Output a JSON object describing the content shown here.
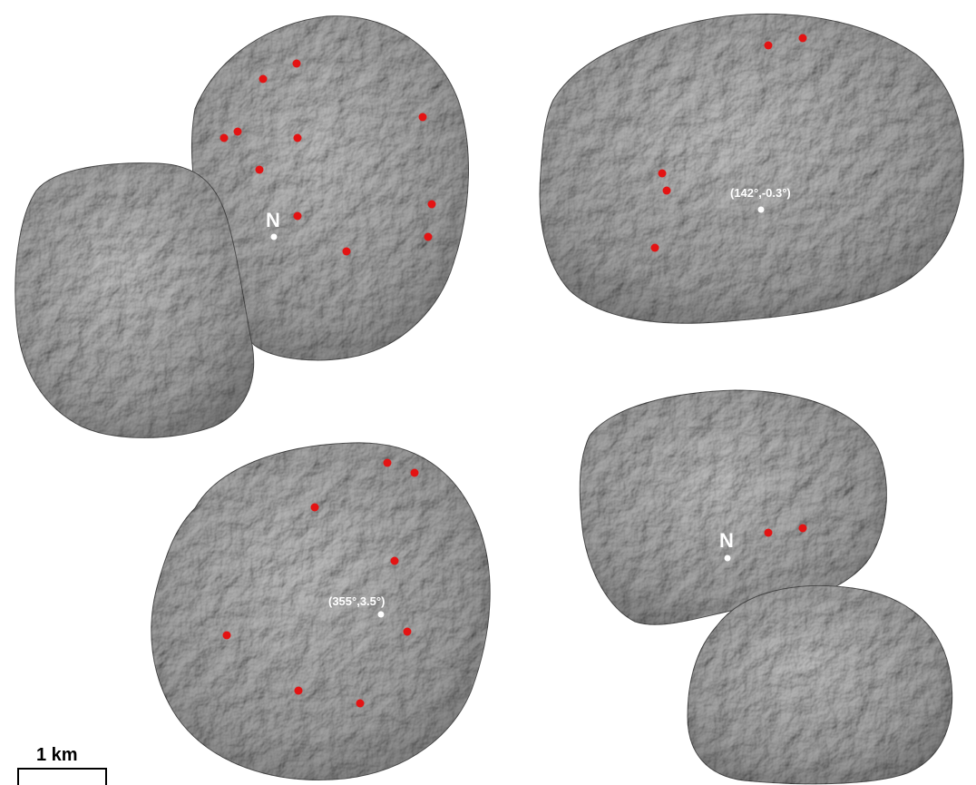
{
  "panels": [
    {
      "id": "top-left",
      "pole_label": "N"
    },
    {
      "id": "top-right",
      "coord_label": "(142°,-0.3°)"
    },
    {
      "id": "bottom-left",
      "coord_label": "(355°,3.5°)"
    },
    {
      "id": "bottom-right",
      "pole_label": "N"
    }
  ],
  "scale_bar": {
    "label": "1 km"
  },
  "colors": {
    "background": "#ffffff",
    "comet_fill": "#9e9e9e",
    "comet_shadow": "#6f6f6f",
    "comet_highlight": "#bdbdbd",
    "marker_red": "#e41313",
    "marker_white": "#ffffff"
  }
}
